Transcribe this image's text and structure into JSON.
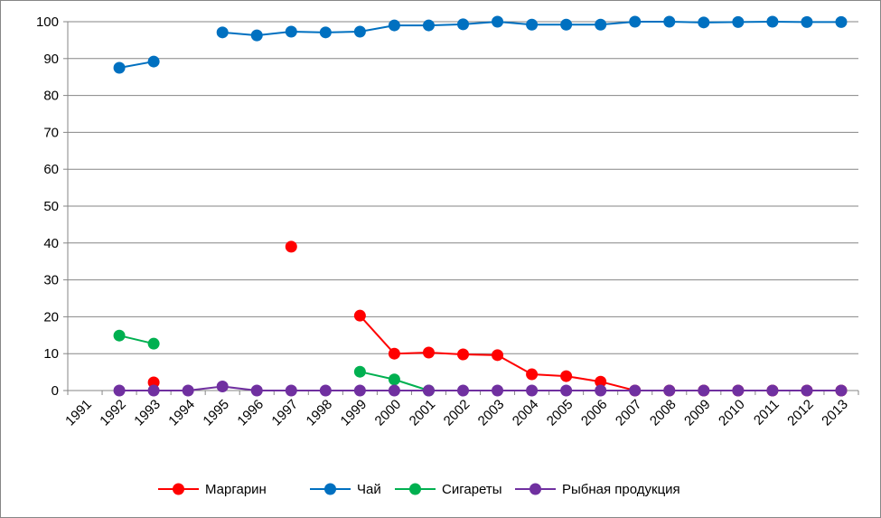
{
  "chart_data": {
    "type": "line",
    "title": "",
    "xlabel": "",
    "ylabel": "",
    "ylim": [
      0,
      100
    ],
    "yticks": [
      0,
      10,
      20,
      30,
      40,
      50,
      60,
      70,
      80,
      90,
      100
    ],
    "grid": "horizontal",
    "legend_position": "bottom",
    "categories": [
      "1991",
      "1992",
      "1993",
      "1994",
      "1995",
      "1996",
      "1997",
      "1998",
      "1999",
      "2000",
      "2001",
      "2002",
      "2003",
      "2004",
      "2005",
      "2006",
      "2007",
      "2008",
      "2009",
      "2010",
      "2011",
      "2012",
      "2013"
    ],
    "series": [
      {
        "name": "Маргарин",
        "color": "#ff0000",
        "values": [
          null,
          null,
          2.2,
          null,
          null,
          null,
          39,
          null,
          20.3,
          10,
          10.3,
          9.8,
          9.6,
          4.4,
          3.9,
          2.4,
          0,
          0,
          0,
          0,
          0,
          0,
          0
        ]
      },
      {
        "name": "Чай",
        "color": "#0070c0",
        "values": [
          null,
          87.5,
          89.2,
          null,
          97.1,
          96.3,
          97.3,
          97.1,
          97.3,
          99,
          99,
          99.3,
          100,
          99.2,
          99.2,
          99.2,
          100,
          100,
          99.8,
          99.9,
          100,
          99.9,
          99.9
        ]
      },
      {
        "name": "Сигареты",
        "color": "#00b050",
        "values": [
          null,
          14.9,
          12.7,
          null,
          null,
          null,
          null,
          null,
          5.1,
          3,
          0,
          null,
          null,
          null,
          null,
          null,
          null,
          null,
          null,
          null,
          null,
          null,
          null
        ]
      },
      {
        "name": "Рыбная продукция",
        "color": "#7030a0",
        "values": [
          null,
          0,
          0,
          0,
          1.1,
          0,
          0,
          0,
          0,
          0,
          0,
          0,
          0,
          0,
          0,
          0,
          0,
          0,
          0,
          0,
          0,
          0,
          0
        ]
      }
    ]
  }
}
